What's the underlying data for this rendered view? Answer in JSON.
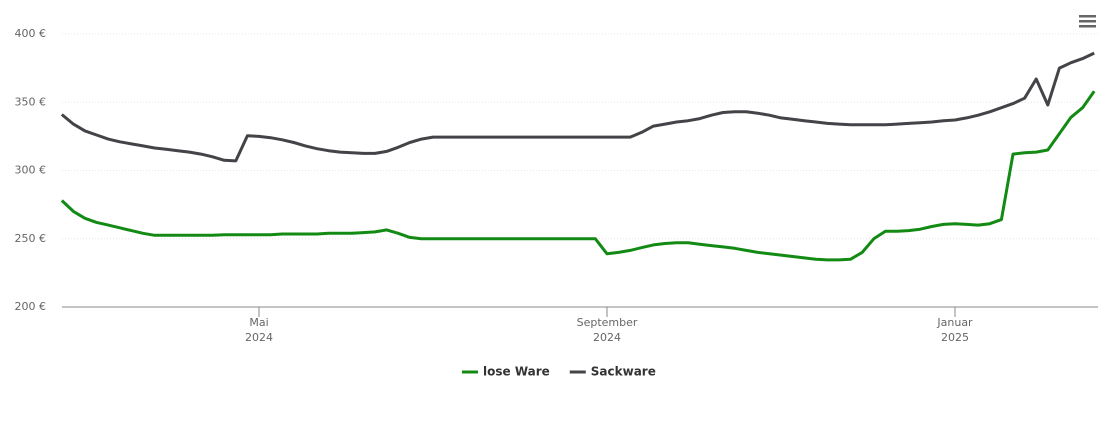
{
  "chart_data": {
    "type": "line",
    "categories": [
      null,
      null,
      null,
      null,
      null,
      null,
      null,
      null,
      null,
      null,
      null,
      null,
      null,
      null,
      null,
      null,
      null,
      [
        "Mai",
        "2024"
      ],
      null,
      null,
      null,
      null,
      null,
      null,
      null,
      null,
      null,
      null,
      null,
      null,
      null,
      null,
      null,
      null,
      null,
      null,
      null,
      null,
      null,
      null,
      null,
      null,
      null,
      null,
      null,
      null,
      null,
      [
        "September",
        "2024"
      ],
      null,
      null,
      null,
      null,
      null,
      null,
      null,
      null,
      null,
      null,
      null,
      null,
      null,
      null,
      null,
      null,
      null,
      null,
      null,
      null,
      null,
      null,
      null,
      null,
      null,
      null,
      null,
      null,
      null,
      [
        "Januar",
        "2025"
      ],
      null,
      null,
      null,
      null,
      null,
      null,
      null,
      null,
      null,
      null,
      null,
      null
    ],
    "series": [
      {
        "name": "lose Ware",
        "color": "#138a13",
        "values": [
          278,
          270,
          265,
          262,
          260,
          258,
          256,
          254,
          252.5,
          252.5,
          252.5,
          252.5,
          252.5,
          252.5,
          253,
          253,
          253,
          253,
          253,
          253.5,
          253.5,
          253.5,
          253.5,
          254,
          254,
          254,
          254.5,
          255,
          256.5,
          254,
          251,
          250,
          250,
          250,
          250,
          250,
          250,
          250,
          250,
          250,
          250,
          250,
          250,
          250,
          250,
          250,
          250,
          239,
          240,
          241.5,
          243.5,
          245.5,
          246.5,
          247,
          247,
          246,
          245,
          244,
          243,
          241.5,
          240,
          239,
          238,
          237,
          236,
          235,
          234.5,
          234.5,
          235,
          240,
          250,
          255.5,
          255.5,
          256,
          257,
          259,
          260.5,
          261,
          260.5,
          260,
          261,
          264,
          312,
          313,
          313.5,
          315,
          327,
          339,
          346,
          358
        ]
      },
      {
        "name": "Sackware",
        "color": "#434348",
        "values": [
          341,
          334,
          329,
          326,
          323,
          321,
          319.5,
          318,
          316.5,
          315.5,
          314.5,
          313.5,
          312,
          310,
          307.5,
          307,
          325.5,
          325,
          324,
          322.5,
          320.5,
          318,
          316,
          314.5,
          313.5,
          313,
          312.5,
          312.5,
          314,
          317,
          320.5,
          323,
          324.5,
          324.5,
          324.5,
          324.5,
          324.5,
          324.5,
          324.5,
          324.5,
          324.5,
          324.5,
          324.5,
          324.5,
          324.5,
          324.5,
          324.5,
          324.5,
          324.5,
          324.5,
          328,
          332.5,
          334,
          335.5,
          336.5,
          338,
          340.5,
          342.5,
          343,
          343,
          342,
          340.5,
          338.5,
          337.5,
          336.5,
          335.5,
          334.5,
          334,
          333.5,
          333.5,
          333.5,
          333.5,
          334,
          334.5,
          335,
          335.5,
          336.5,
          337,
          338.5,
          340.5,
          343,
          346,
          349,
          353,
          367,
          348,
          375,
          379,
          382,
          386
        ]
      }
    ],
    "ylim": [
      200,
      400
    ],
    "yticks": [
      {
        "value": 200,
        "label": "200 €"
      },
      {
        "value": 250,
        "label": "250 €"
      },
      {
        "value": 300,
        "label": "300 €"
      },
      {
        "value": 350,
        "label": "350 €"
      },
      {
        "value": 400,
        "label": "400 €"
      }
    ],
    "grid": true,
    "legend": "bottom"
  }
}
